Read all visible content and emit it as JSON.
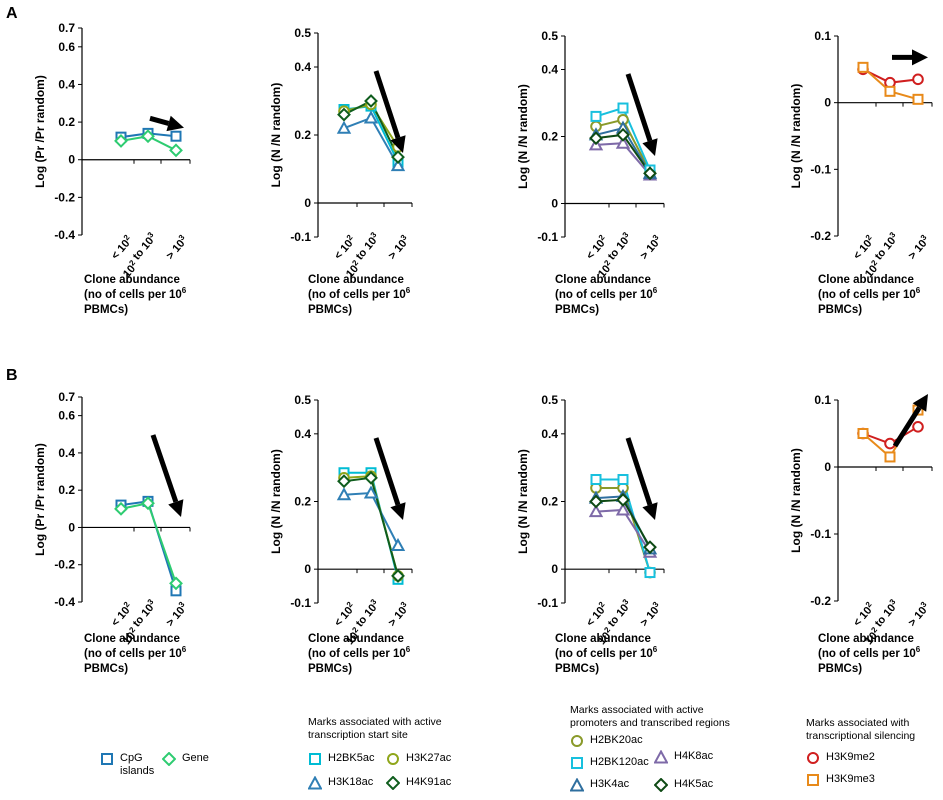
{
  "panel_labels": [
    "A",
    "B"
  ],
  "x_categories": [
    "< 10",
    "2",
    "10",
    "2",
    " to 10",
    "3",
    "> 10",
    "3"
  ],
  "xlabel_lines": [
    "Clone abundance",
    "(no of cells per 10",
    "6",
    "PBMCs)"
  ],
  "xlabel_lines_alt": [
    "Clone abundance",
    "(no  of cells per 10",
    "6",
    "PBMCs)"
  ],
  "colors": {
    "cpg": "#1f77b4",
    "gene": "#2ecc71",
    "h2bk5ac": "#00bcd4",
    "h3k27ac": "#8fa61a",
    "h3k18ac": "#2f7fb5",
    "h4k91ac": "#0f5d1d",
    "h2bk20ac": "#8a9a2a",
    "h2bk120ac": "#18c0de",
    "h4k8ac": "#7e6aa8",
    "h3k4ac": "#2f6f9f",
    "h4k5ac": "#0e4a14",
    "h3k9me2": "#d01f1f",
    "h3k9me3": "#e88a1a"
  },
  "chart_data": [
    {
      "type": "line",
      "panel": "A",
      "ylabel": "Log (Pr /Pr random)",
      "ylim": [
        -0.4,
        0.7
      ],
      "yticks": [
        "-0.4",
        "-0.2",
        "0",
        "0.2",
        "0.4",
        "0.6",
        "0.7"
      ],
      "yvals": [
        -0.4,
        -0.2,
        0,
        0.2,
        0.4,
        0.6,
        0.7
      ],
      "series": [
        {
          "name": "CpG islands",
          "key": "cpg",
          "marker": "square",
          "values": [
            0.12,
            0.14,
            0.125
          ]
        },
        {
          "name": "Gene",
          "key": "gene",
          "marker": "diamond",
          "values": [
            0.1,
            0.125,
            0.05
          ]
        }
      ],
      "arrow": "down-slight"
    },
    {
      "type": "line",
      "panel": "A",
      "ylabel": "Log (N /N random)",
      "ylim": [
        -0.1,
        0.5
      ],
      "yticks": [
        "-0.1",
        "0",
        "0.2",
        "0.4",
        "0.5"
      ],
      "yvals": [
        -0.1,
        0,
        0.2,
        0.4,
        0.5
      ],
      "series": [
        {
          "name": "H2BK5ac",
          "key": "h2bk5ac",
          "marker": "square",
          "values": [
            0.275,
            0.285,
            0.12
          ]
        },
        {
          "name": "H3K27ac",
          "key": "h3k27ac",
          "marker": "circle",
          "values": [
            0.27,
            0.29,
            0.165
          ]
        },
        {
          "name": "H3K18ac",
          "key": "h3k18ac",
          "marker": "triangle",
          "values": [
            0.22,
            0.25,
            0.11
          ]
        },
        {
          "name": "H4K91ac",
          "key": "h4k91ac",
          "marker": "diamond",
          "values": [
            0.26,
            0.3,
            0.135
          ]
        }
      ],
      "arrow": "down"
    },
    {
      "type": "line",
      "panel": "A",
      "ylabel": "Log (N /N random)",
      "ylim": [
        -0.1,
        0.5
      ],
      "yticks": [
        "-0.1",
        "0",
        "0.2",
        "0.4",
        "0.5"
      ],
      "yvals": [
        -0.1,
        0,
        0.2,
        0.4,
        0.5
      ],
      "series": [
        {
          "name": "H2BK20ac",
          "key": "h2bk20ac",
          "marker": "circle",
          "values": [
            0.23,
            0.25,
            0.095
          ]
        },
        {
          "name": "H2BK120ac",
          "key": "h2bk120ac",
          "marker": "square",
          "values": [
            0.26,
            0.285,
            0.1
          ]
        },
        {
          "name": "H4K8ac",
          "key": "h4k8ac",
          "marker": "triangle",
          "values": [
            0.175,
            0.18,
            0.085
          ]
        },
        {
          "name": "H3K4ac",
          "key": "h3k4ac",
          "marker": "triangle",
          "values": [
            0.205,
            0.225,
            0.09
          ]
        },
        {
          "name": "H4K5ac",
          "key": "h4k5ac",
          "marker": "diamond",
          "values": [
            0.195,
            0.205,
            0.09
          ]
        }
      ],
      "arrow": "down"
    },
    {
      "type": "line",
      "panel": "A",
      "ylabel": "Log (N /N random)",
      "ylim": [
        -0.2,
        0.1
      ],
      "yticks": [
        "-0.2",
        "-0.1",
        "0",
        "0.1"
      ],
      "yvals": [
        -0.2,
        -0.1,
        0,
        0.1
      ],
      "series": [
        {
          "name": "H3K9me2",
          "key": "h3k9me2",
          "marker": "circle",
          "values": [
            0.05,
            0.03,
            0.035
          ]
        },
        {
          "name": "H3K9me3",
          "key": "h3k9me3",
          "marker": "square",
          "values": [
            0.053,
            0.017,
            0.005
          ]
        }
      ],
      "arrow": "right"
    },
    {
      "type": "line",
      "panel": "B",
      "ylabel": "Log (Pr /Pr random)",
      "ylim": [
        -0.4,
        0.7
      ],
      "yticks": [
        "-0.4",
        "-0.2",
        "0",
        "0.2",
        "0.4",
        "0.6",
        "0.7"
      ],
      "yvals": [
        -0.4,
        -0.2,
        0,
        0.2,
        0.4,
        0.6,
        0.7
      ],
      "series": [
        {
          "name": "CpG islands",
          "key": "cpg",
          "marker": "square",
          "values": [
            0.12,
            0.14,
            -0.34
          ]
        },
        {
          "name": "Gene",
          "key": "gene",
          "marker": "diamond",
          "values": [
            0.1,
            0.13,
            -0.3
          ]
        }
      ],
      "arrow": "down"
    },
    {
      "type": "line",
      "panel": "B",
      "ylabel": "Log (N /N random)",
      "ylim": [
        -0.1,
        0.5
      ],
      "yticks": [
        "-0.1",
        "0",
        "0.2",
        "0.4",
        "0.5"
      ],
      "yvals": [
        -0.1,
        0,
        0.2,
        0.4,
        0.5
      ],
      "series": [
        {
          "name": "H2BK5ac",
          "key": "h2bk5ac",
          "marker": "square",
          "values": [
            0.285,
            0.285,
            -0.03
          ]
        },
        {
          "name": "H3K27ac",
          "key": "h3k27ac",
          "marker": "circle",
          "values": [
            0.27,
            0.275,
            -0.02
          ]
        },
        {
          "name": "H3K18ac",
          "key": "h3k18ac",
          "marker": "triangle",
          "values": [
            0.22,
            0.225,
            0.07
          ]
        },
        {
          "name": "H4K91ac",
          "key": "h4k91ac",
          "marker": "diamond",
          "values": [
            0.26,
            0.27,
            -0.02
          ]
        }
      ],
      "arrow": "down"
    },
    {
      "type": "line",
      "panel": "B",
      "ylabel": "Log (N /N random)",
      "ylim": [
        -0.1,
        0.5
      ],
      "yticks": [
        "-0.1",
        "0",
        "0.2",
        "0.4",
        "0.5"
      ],
      "yvals": [
        -0.1,
        0,
        0.2,
        0.4,
        0.5
      ],
      "series": [
        {
          "name": "H2BK20ac",
          "key": "h2bk20ac",
          "marker": "circle",
          "values": [
            0.24,
            0.24,
            -0.01
          ]
        },
        {
          "name": "H2BK120ac",
          "key": "h2bk120ac",
          "marker": "square",
          "values": [
            0.265,
            0.265,
            -0.01
          ]
        },
        {
          "name": "H4K8ac",
          "key": "h4k8ac",
          "marker": "triangle",
          "values": [
            0.17,
            0.175,
            0.05
          ]
        },
        {
          "name": "H3K4ac",
          "key": "h3k4ac",
          "marker": "triangle",
          "values": [
            0.21,
            0.215,
            0.06
          ]
        },
        {
          "name": "H4K5ac",
          "key": "h4k5ac",
          "marker": "diamond",
          "values": [
            0.2,
            0.205,
            0.065
          ]
        }
      ],
      "arrow": "down"
    },
    {
      "type": "line",
      "panel": "B",
      "ylabel": "Log (N /N random)",
      "ylim": [
        -0.2,
        0.1
      ],
      "yticks": [
        "-0.2",
        "-0.1",
        "0",
        "0.1"
      ],
      "yvals": [
        -0.2,
        -0.1,
        0,
        0.1
      ],
      "series": [
        {
          "name": "H3K9me2",
          "key": "h3k9me2",
          "marker": "circle",
          "values": [
            0.05,
            0.035,
            0.06
          ]
        },
        {
          "name": "H3K9me3",
          "key": "h3k9me3",
          "marker": "square",
          "values": [
            0.05,
            0.015,
            0.085
          ]
        }
      ],
      "arrow": "up-right"
    }
  ],
  "legends": {
    "g1": {
      "items": [
        {
          "label": "CpG",
          "label2": "islands",
          "key": "cpg",
          "marker": "square"
        },
        {
          "label": "Gene",
          "key": "gene",
          "marker": "diamond"
        }
      ]
    },
    "g2": {
      "title1": "Marks associated with active",
      "title2": "transcription start site",
      "items": [
        {
          "label": "H2BK5ac",
          "key": "h2bk5ac",
          "marker": "square"
        },
        {
          "label": "H3K27ac",
          "key": "h3k27ac",
          "marker": "circle"
        },
        {
          "label": "H3K18ac",
          "key": "h3k18ac",
          "marker": "triangle"
        },
        {
          "label": "H4K91ac",
          "key": "h4k91ac",
          "marker": "diamond"
        }
      ]
    },
    "g3": {
      "title1": "Marks associated with active",
      "title2": "promoters and transcribed regions",
      "items": [
        {
          "label": "H2BK20ac",
          "key": "h2bk20ac",
          "marker": "circle"
        },
        {
          "label": "H2BK120ac",
          "key": "h2bk120ac",
          "marker": "square"
        },
        {
          "label": "H4K8ac",
          "key": "h4k8ac",
          "marker": "triangle"
        },
        {
          "label": "H3K4ac",
          "key": "h3k4ac",
          "marker": "triangle"
        },
        {
          "label": "H4K5ac",
          "key": "h4k5ac",
          "marker": "diamond"
        }
      ]
    },
    "g4": {
      "title1": "Marks associated with",
      "title2": "transcriptional silencing",
      "items": [
        {
          "label": "H3K9me2",
          "key": "h3k9me2",
          "marker": "circle"
        },
        {
          "label": "H3K9me3",
          "key": "h3k9me3",
          "marker": "square"
        }
      ]
    }
  }
}
